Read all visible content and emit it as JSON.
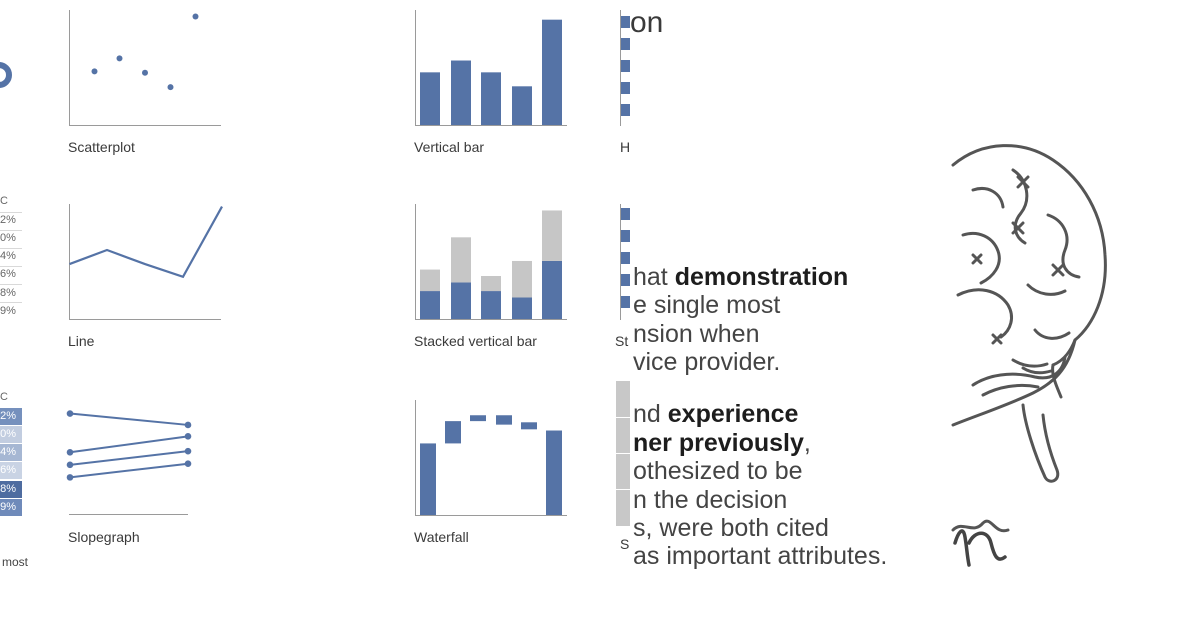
{
  "colors": {
    "series": "#5573a6",
    "stack_top": "#c6c6c6",
    "text": "#3a3a3a",
    "axis": "#9a9a9a"
  },
  "left_strip": {
    "header_top": "C",
    "pcts_top": [
      "2%",
      "0%",
      "4%",
      "6%",
      "8%",
      "9%"
    ],
    "header_bottom": "C",
    "pcts_bottom": [
      "2%",
      "0%",
      "4%",
      "6%",
      "8%",
      "9%"
    ],
    "footer": "most"
  },
  "labels": {
    "scatterplot": "Scatterplot",
    "line": "Line",
    "slopegraph": "Slopegraph",
    "vertical_bar": "Vertical bar",
    "stacked_vertical_bar": "Stacked vertical bar",
    "waterfall": "Waterfall",
    "partial_top": "H",
    "partial_mid": "St",
    "partial_bottom": "S",
    "partial_title": "on"
  },
  "chart_data": [
    {
      "type": "scatter",
      "x": [
        1,
        2,
        3,
        4,
        5
      ],
      "y": [
        4.1,
        5.1,
        4.0,
        2.9,
        8.3
      ],
      "ylim": [
        0,
        8.8
      ]
    },
    {
      "type": "line",
      "x": [
        1,
        2,
        3,
        4,
        5
      ],
      "y": [
        4.3,
        5.4,
        4.3,
        3.3,
        8.8
      ],
      "ylim": [
        0,
        9
      ]
    },
    {
      "type": "line",
      "subtype": "slopegraph",
      "series": [
        {
          "values": [
            8.9,
            7.9
          ]
        },
        {
          "values": [
            5.5,
            6.9
          ]
        },
        {
          "values": [
            4.4,
            5.6
          ]
        },
        {
          "values": [
            3.3,
            4.5
          ]
        }
      ],
      "ylim": [
        0,
        10
      ]
    },
    {
      "type": "bar",
      "values": [
        4.9,
        6.0,
        4.9,
        3.6,
        9.8
      ],
      "ylim": [
        0,
        10.7
      ]
    },
    {
      "type": "bar",
      "subtype": "stacked",
      "series": [
        {
          "values": [
            2.6,
            3.4,
            2.6,
            2.0,
            5.4
          ]
        },
        {
          "values": [
            2.0,
            4.2,
            1.4,
            3.4,
            4.7
          ]
        }
      ],
      "ylim": [
        0,
        10.7
      ]
    },
    {
      "type": "bar",
      "subtype": "waterfall",
      "segments": [
        [
          0,
          6.1
        ],
        [
          6.1,
          8.0
        ],
        [
          8.0,
          8.5
        ],
        [
          7.7,
          8.5
        ],
        [
          7.3,
          7.9
        ],
        [
          0,
          7.2
        ]
      ],
      "ylim": [
        0,
        9.8
      ]
    }
  ],
  "text_panel": {
    "lines": [
      {
        "plain": "hat ",
        "bold": "demonstration",
        "tail": ""
      },
      {
        "plain": "e single most",
        "bold": "",
        "tail": ""
      },
      {
        "plain": "nsion when",
        "bold": "",
        "tail": ""
      },
      {
        "plain": "vice provider.",
        "bold": "",
        "tail": ""
      },
      {
        "plain": "nd ",
        "bold": "experience",
        "tail": ""
      },
      {
        "plain": "",
        "bold": "ner previously",
        "tail": ","
      },
      {
        "plain": "othesized to be",
        "bold": "",
        "tail": ""
      },
      {
        "plain": "n the decision",
        "bold": "",
        "tail": ""
      },
      {
        "plain": "s, were both cited",
        "bold": "",
        "tail": ""
      },
      {
        "plain": "as important attributes.",
        "bold": "",
        "tail": ""
      }
    ]
  }
}
